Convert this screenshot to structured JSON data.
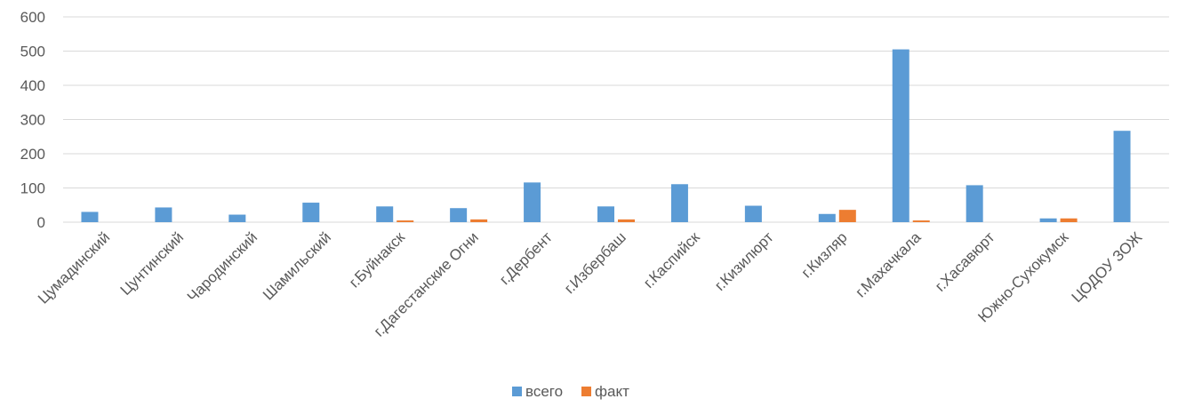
{
  "chart_data": {
    "type": "bar",
    "title": "",
    "xlabel": "",
    "ylabel": "",
    "ylim": [
      0,
      600
    ],
    "yticks": [
      0,
      100,
      200,
      300,
      400,
      500,
      600
    ],
    "grid": true,
    "legend_position": "bottom",
    "categories": [
      "Цумадинский",
      "Цунтинский",
      "Чародинский",
      "Шамильский",
      "г.Буйнакск",
      "г.Дагестанские Огни",
      "г.Дербент",
      "г.Избербаш",
      "г.Каспийск",
      "г.Кизилюрт",
      "г.Кизляр",
      "г.Махачкала",
      "г.Хасавюрт",
      "Южно-Сухокумск",
      "ЦОДОУ ЗОЖ"
    ],
    "series": [
      {
        "name": "всего",
        "color": "#5B9BD5",
        "values": [
          30,
          43,
          22,
          57,
          46,
          41,
          116,
          46,
          111,
          48,
          24,
          505,
          108,
          11,
          267
        ]
      },
      {
        "name": "факт",
        "color": "#ED7D31",
        "values": [
          0,
          0,
          0,
          0,
          5,
          8,
          0,
          8,
          0,
          0,
          36,
          5,
          0,
          11,
          0
        ]
      }
    ]
  }
}
